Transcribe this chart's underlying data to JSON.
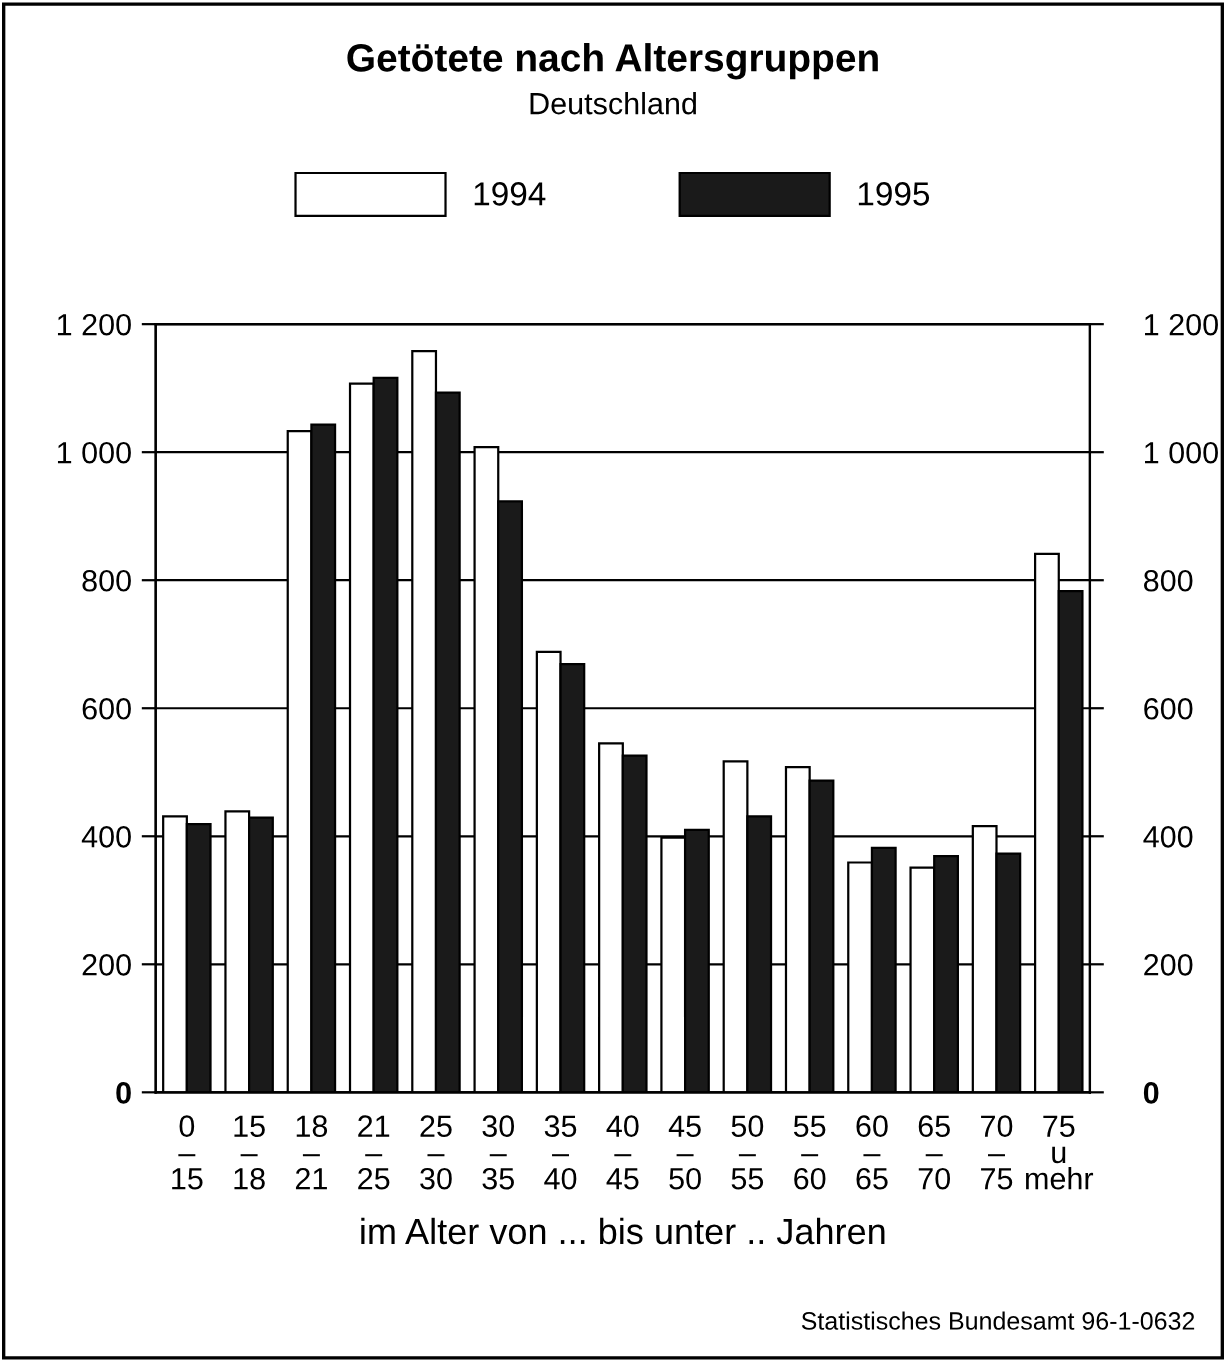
{
  "chart_data": {
    "type": "bar",
    "title": "Getötete nach Altersgruppen",
    "subtitle": "Deutschland",
    "xlabel": "im Alter von ... bis unter .. Jahren",
    "categories": [
      "0\n–\n15",
      "15\n–\n18",
      "18\n–\n21",
      "21\n–\n25",
      "25\n–\n30",
      "30\n–\n35",
      "35\n–\n40",
      "40\n–\n45",
      "45\n–\n50",
      "50\n–\n55",
      "55\n–\n60",
      "60\n–\n65",
      "65\n–\n70",
      "70\n–\n75",
      "75\nu\nmehr"
    ],
    "series": [
      {
        "name": "1994",
        "color": "#ffffff",
        "values": [
          431,
          439,
          1033,
          1107,
          1158,
          1008,
          688,
          545,
          398,
          517,
          508,
          359,
          351,
          416,
          841
        ]
      },
      {
        "name": "1995",
        "color": "#1a1a1a",
        "values": [
          419,
          429,
          1043,
          1116,
          1093,
          923,
          669,
          526,
          410,
          431,
          487,
          382,
          369,
          373,
          783
        ]
      }
    ],
    "ylim": [
      0,
      1200
    ],
    "yticks": [
      0,
      200,
      400,
      600,
      800,
      {
        "value": 1000,
        "label": "1 000"
      },
      {
        "value": 1200,
        "label": "1 200"
      }
    ],
    "y2lim": [
      0,
      1200
    ],
    "y2ticks": [
      0,
      200,
      400,
      600,
      800,
      {
        "value": 1000,
        "label": "1 000"
      },
      {
        "value": 1200,
        "label": "1 200"
      }
    ],
    "grid": "y",
    "legend": "top",
    "annotations": [
      "Statistisches Bundesamt 96-1-0632"
    ]
  }
}
